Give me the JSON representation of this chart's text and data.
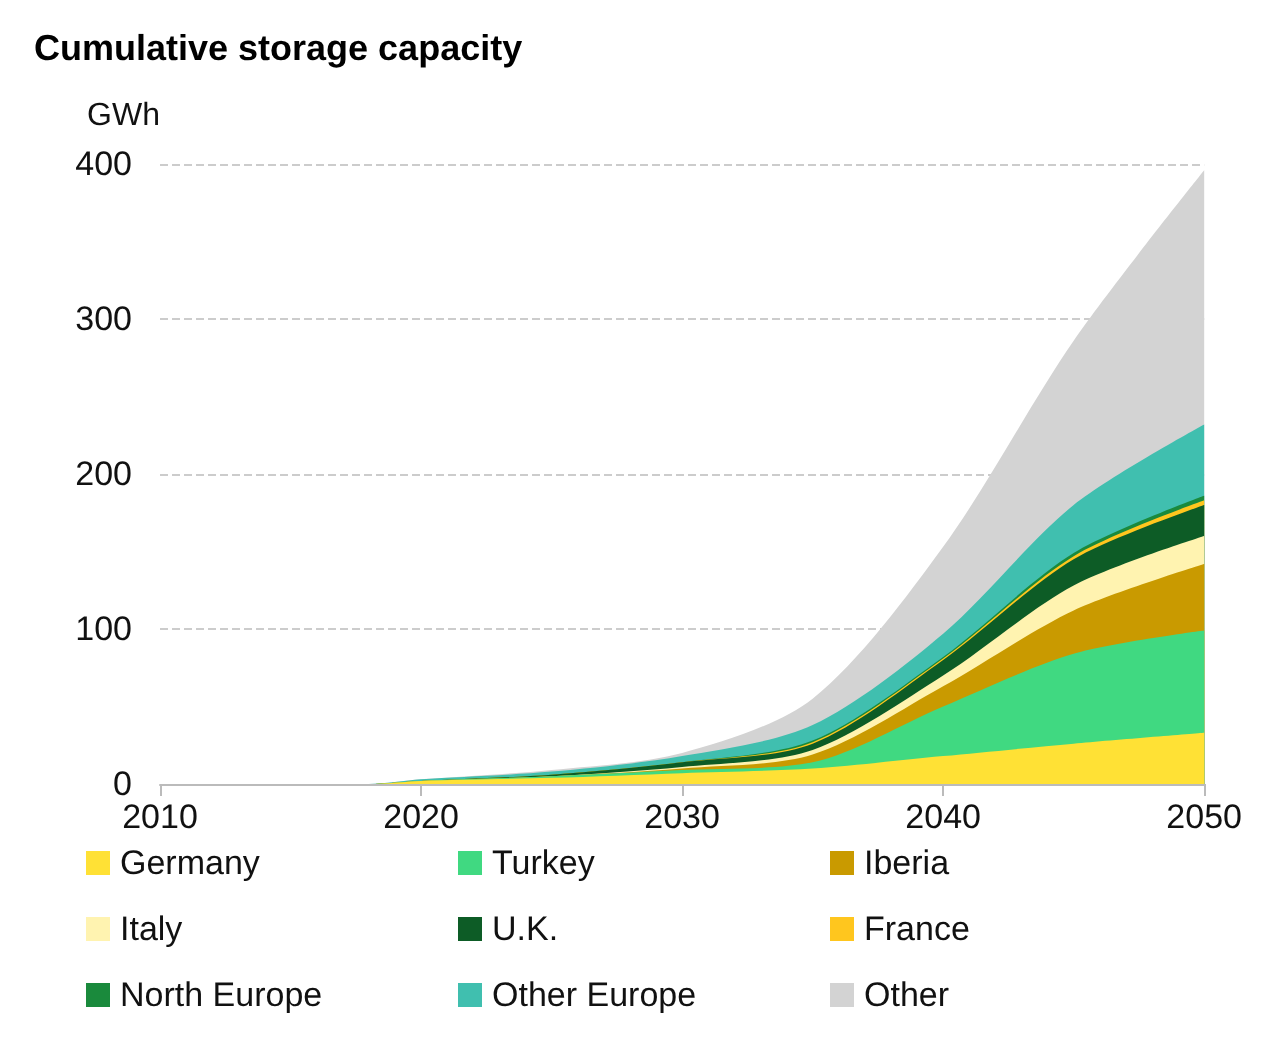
{
  "chart_data": {
    "type": "area",
    "title": "Cumulative storage capacity",
    "ylabel": "GWh",
    "stacked": true,
    "x": [
      2010,
      2018,
      2020,
      2025,
      2030,
      2035,
      2040,
      2045,
      2050
    ],
    "series": [
      {
        "name": "Germany",
        "color": "#ffe135",
        "values": [
          0,
          0,
          2,
          4,
          7,
          10,
          18,
          26,
          33
        ]
      },
      {
        "name": "Turkey",
        "color": "#40d981",
        "values": [
          0,
          0,
          0,
          1,
          2,
          4,
          32,
          58,
          66
        ]
      },
      {
        "name": "Iberia",
        "color": "#c99a00",
        "values": [
          0,
          0,
          0,
          0,
          1,
          5,
          13,
          28,
          43
        ]
      },
      {
        "name": "Italy",
        "color": "#fff3b0",
        "values": [
          0,
          0,
          0,
          0,
          1,
          3,
          7,
          16,
          18
        ]
      },
      {
        "name": "U.K.",
        "color": "#0d5c26",
        "values": [
          0,
          0,
          0,
          1,
          3,
          4,
          10,
          17,
          20
        ]
      },
      {
        "name": "France",
        "color": "#ffc61e",
        "values": [
          0,
          0,
          0,
          0,
          0,
          1,
          1,
          2,
          3
        ]
      },
      {
        "name": "North Europe",
        "color": "#1a8a3c",
        "values": [
          0,
          0,
          0,
          0,
          0,
          1,
          1,
          2,
          3
        ]
      },
      {
        "name": "Other Europe",
        "color": "#40bfaf",
        "values": [
          0,
          0,
          1,
          2,
          4,
          10,
          15,
          31,
          46
        ]
      },
      {
        "name": "Other",
        "color": "#d3d3d3",
        "values": [
          0,
          0,
          0,
          1,
          2,
          17,
          56,
          106,
          164
        ]
      }
    ],
    "xlim": [
      2010,
      2050
    ],
    "xticks": [
      2010,
      2020,
      2030,
      2040,
      2050
    ],
    "ylim": [
      0,
      400
    ],
    "yticks": [
      0,
      100,
      200,
      300,
      400
    ],
    "grid": "y",
    "legend": "bottom"
  }
}
